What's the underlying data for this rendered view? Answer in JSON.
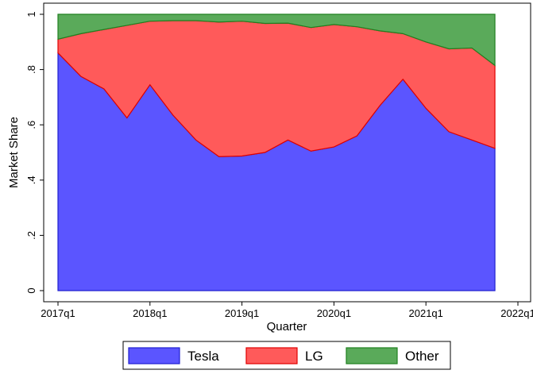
{
  "chart_data": {
    "type": "stacked-area",
    "x_label": "Quarter",
    "y_label": "Market Share",
    "x": [
      2017,
      2017.25,
      2017.5,
      2017.75,
      2018,
      2018.25,
      2018.5,
      2018.75,
      2019,
      2019.25,
      2019.5,
      2019.75,
      2020,
      2020.25,
      2020.5,
      2020.75,
      2021,
      2021.25,
      2021.5,
      2021.75
    ],
    "series": [
      {
        "name": "Tesla",
        "color": "#5b55ff",
        "edge": "#2020d0",
        "values": [
          0.86,
          0.775,
          0.73,
          0.625,
          0.745,
          0.635,
          0.545,
          0.485,
          0.487,
          0.5,
          0.545,
          0.505,
          0.52,
          0.56,
          0.67,
          0.765,
          0.66,
          0.575,
          0.545,
          0.515
        ]
      },
      {
        "name": "LG",
        "color": "#ff5a5a",
        "edge": "#e00000",
        "values": [
          0.05,
          0.155,
          0.215,
          0.335,
          0.23,
          0.342,
          0.432,
          0.487,
          0.488,
          0.467,
          0.423,
          0.447,
          0.443,
          0.395,
          0.27,
          0.165,
          0.24,
          0.3,
          0.333,
          0.3
        ]
      },
      {
        "name": "Other",
        "color": "#5aaa5a",
        "edge": "#208020",
        "values": [
          0.09,
          0.07,
          0.055,
          0.04,
          0.025,
          0.023,
          0.023,
          0.028,
          0.025,
          0.033,
          0.032,
          0.048,
          0.037,
          0.045,
          0.06,
          0.07,
          0.1,
          0.125,
          0.122,
          0.185
        ]
      }
    ],
    "xlim": [
      2017,
      2022
    ],
    "xticks": [
      {
        "value": 2017,
        "label": "2017q1"
      },
      {
        "value": 2018,
        "label": "2018q1"
      },
      {
        "value": 2019,
        "label": "2019q1"
      },
      {
        "value": 2020,
        "label": "2020q1"
      },
      {
        "value": 2021,
        "label": "2021q1"
      },
      {
        "value": 2022,
        "label": "2022q1"
      }
    ],
    "ylim": [
      0,
      1
    ],
    "yticks": [
      0,
      {
        "value": 0.2,
        "label": ".2"
      },
      {
        "value": 0.4,
        "label": ".4"
      },
      {
        "value": 0.6,
        "label": ".6"
      },
      {
        "value": 0.8,
        "label": ".8"
      },
      1
    ],
    "legend": "bottom"
  }
}
